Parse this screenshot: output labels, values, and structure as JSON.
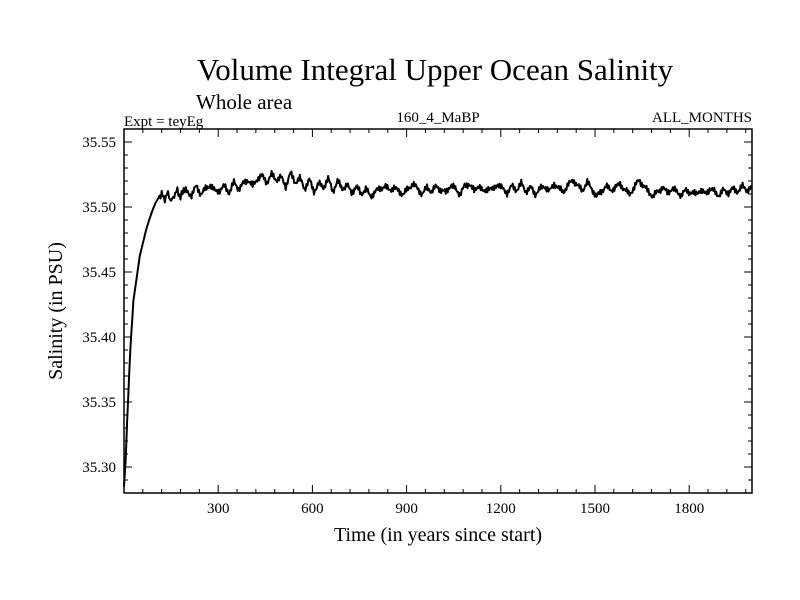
{
  "chart_data": {
    "type": "line",
    "title": "Volume Integral Upper Ocean Salinity",
    "subtitle": "Whole area",
    "header_left": "Expt = teyEg",
    "header_center": "160_4_MaBP",
    "header_right": "ALL_MONTHS",
    "xlabel": "Time (in years since start)",
    "ylabel": "Salinity (in PSU)",
    "xlim": [
      0,
      2000
    ],
    "ylim": [
      35.28,
      35.56
    ],
    "xticks": [
      300,
      600,
      900,
      1200,
      1500,
      1800
    ],
    "xtick_labels": [
      "300",
      "600",
      "900",
      "1200",
      "1500",
      "1800"
    ],
    "yticks": [
      35.3,
      35.35,
      35.4,
      35.45,
      35.5,
      35.55
    ],
    "ytick_labels": [
      "35.30",
      "35.35",
      "35.40",
      "35.45",
      "35.50",
      "35.55"
    ],
    "grid": false,
    "series": [
      {
        "name": "Salinity",
        "x": [
          0,
          5,
          10,
          20,
          30,
          40,
          50,
          60,
          70,
          80,
          90,
          100,
          110,
          120,
          130,
          140,
          150,
          160,
          170,
          180,
          190,
          200,
          215,
          230,
          245,
          260,
          275,
          290,
          305,
          320,
          335,
          350,
          365,
          380,
          395,
          410,
          425,
          440,
          455,
          470,
          485,
          500,
          515,
          530,
          545,
          560,
          575,
          590,
          605,
          620,
          635,
          650,
          665,
          680,
          695,
          710,
          725,
          740,
          755,
          770,
          785,
          800,
          815,
          830,
          845,
          860,
          875,
          890,
          905,
          920,
          935,
          950,
          965,
          980,
          995,
          1010,
          1025,
          1040,
          1055,
          1070,
          1085,
          1100,
          1115,
          1130,
          1145,
          1160,
          1175,
          1190,
          1205,
          1220,
          1235,
          1250,
          1265,
          1280,
          1295,
          1310,
          1325,
          1340,
          1355,
          1370,
          1385,
          1400,
          1415,
          1430,
          1445,
          1460,
          1475,
          1490,
          1505,
          1520,
          1535,
          1550,
          1565,
          1580,
          1595,
          1610,
          1625,
          1640,
          1655,
          1670,
          1685,
          1700,
          1715,
          1730,
          1745,
          1760,
          1775,
          1790,
          1805,
          1820,
          1835,
          1850,
          1865,
          1880,
          1895,
          1910,
          1925,
          1940,
          1955,
          1970,
          1985,
          2000
        ],
        "values": [
          35.285,
          35.305,
          35.335,
          35.39,
          35.428,
          35.445,
          35.462,
          35.472,
          35.482,
          35.49,
          35.497,
          35.503,
          35.507,
          35.51,
          35.506,
          35.511,
          35.504,
          35.509,
          35.513,
          35.507,
          35.514,
          35.512,
          35.509,
          35.516,
          35.51,
          35.514,
          35.517,
          35.512,
          35.513,
          35.516,
          35.511,
          35.519,
          35.514,
          35.518,
          35.521,
          35.516,
          35.522,
          35.524,
          35.519,
          35.525,
          35.521,
          35.523,
          35.516,
          35.526,
          35.519,
          35.522,
          35.514,
          35.521,
          35.512,
          35.518,
          35.515,
          35.522,
          35.512,
          35.52,
          35.514,
          35.517,
          35.511,
          35.516,
          35.51,
          35.514,
          35.508,
          35.512,
          35.514,
          35.516,
          35.513,
          35.515,
          35.512,
          35.51,
          35.514,
          35.518,
          35.514,
          35.51,
          35.515,
          35.512,
          35.516,
          35.513,
          35.511,
          35.517,
          35.514,
          35.51,
          35.516,
          35.518,
          35.512,
          35.517,
          35.511,
          35.515,
          35.513,
          35.518,
          35.514,
          35.511,
          35.516,
          35.513,
          35.518,
          35.512,
          35.515,
          35.51,
          35.514,
          35.516,
          35.512,
          35.518,
          35.514,
          35.512,
          35.517,
          35.521,
          35.516,
          35.513,
          35.519,
          35.514,
          35.508,
          35.512,
          35.516,
          35.513,
          35.515,
          35.518,
          35.513,
          35.51,
          35.515,
          35.521,
          35.516,
          35.512,
          35.508,
          35.512,
          35.515,
          35.511,
          35.514,
          35.512,
          35.509,
          35.513,
          35.511,
          35.51,
          35.513,
          35.51,
          35.514,
          35.512,
          35.509,
          35.513,
          35.511,
          35.514,
          35.512,
          35.516,
          35.513,
          35.515
        ]
      }
    ]
  }
}
